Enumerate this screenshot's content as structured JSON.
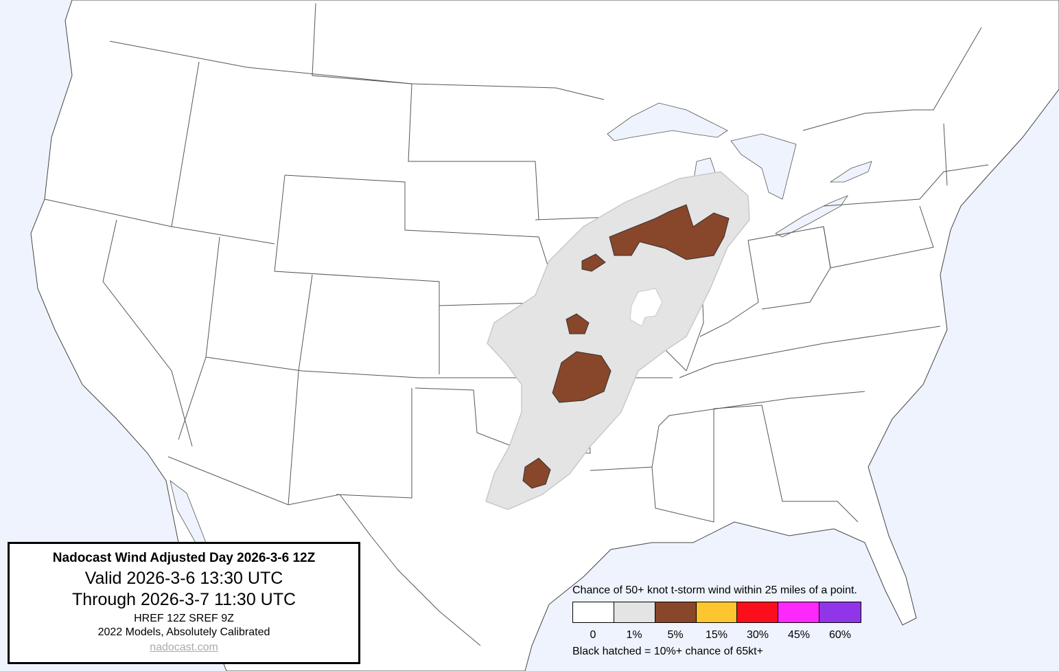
{
  "title_box": {
    "title": "Nadocast Wind Adjusted Day 2026-3-6 12Z",
    "valid": "Valid 2026-3-6 13:30 UTC",
    "through": "Through 2026-3-7 11:30 UTC",
    "models": "HREF 12Z SREF 9Z",
    "calibration": "2022 Models, Absolutely Calibrated",
    "link": "nadocast.com"
  },
  "legend": {
    "caption": "Chance of 50+ knot t-storm wind within 25 miles of a point.",
    "levels": [
      {
        "label": "0",
        "color": "#ffffff"
      },
      {
        "label": "1%",
        "color": "#e4e4e4"
      },
      {
        "label": "5%",
        "color": "#88462a"
      },
      {
        "label": "15%",
        "color": "#fdc62e"
      },
      {
        "label": "30%",
        "color": "#fb0f1c"
      },
      {
        "label": "45%",
        "color": "#fd28fb"
      },
      {
        "label": "60%",
        "color": "#9036e8"
      }
    ],
    "note": "Black hatched = 10%+ chance of 65kt+"
  },
  "map": {
    "land_color": "#ffffff",
    "water_color": "#eef3fd",
    "max_level_shown": "5%"
  }
}
